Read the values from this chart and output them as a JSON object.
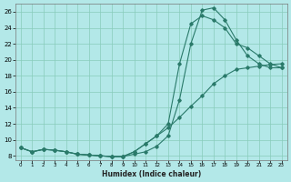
{
  "xlabel": "Humidex (Indice chaleur)",
  "background_color": "#b3e8e8",
  "grid_color": "#88ccbb",
  "line_color": "#2a7a6a",
  "xlim": [
    -0.5,
    23.5
  ],
  "ylim": [
    7.5,
    27
  ],
  "xticks": [
    0,
    1,
    2,
    3,
    4,
    5,
    6,
    7,
    8,
    9,
    10,
    11,
    12,
    13,
    14,
    15,
    16,
    17,
    18,
    19,
    20,
    21,
    22,
    23
  ],
  "yticks": [
    8,
    10,
    12,
    14,
    16,
    18,
    20,
    22,
    24,
    26
  ],
  "curve1_x": [
    0,
    1,
    2,
    3,
    4,
    5,
    6,
    7,
    8,
    9,
    10,
    11,
    12,
    13,
    14,
    15,
    16,
    17,
    18,
    19,
    20,
    21,
    22,
    23
  ],
  "curve1_y": [
    9.0,
    8.5,
    8.8,
    8.7,
    8.5,
    8.2,
    8.1,
    8.0,
    7.9,
    7.9,
    8.2,
    8.5,
    9.2,
    10.5,
    15.0,
    22.0,
    26.2,
    26.5,
    25.0,
    22.5,
    20.5,
    19.5,
    19.0,
    19.0
  ],
  "curve2_x": [
    0,
    1,
    2,
    3,
    4,
    5,
    6,
    7,
    8,
    9,
    10,
    11,
    12,
    13,
    14,
    15,
    16,
    17,
    18,
    19,
    20,
    21,
    22,
    23
  ],
  "curve2_y": [
    9.0,
    8.5,
    8.8,
    8.7,
    8.5,
    8.2,
    8.1,
    8.0,
    7.9,
    7.9,
    8.5,
    9.5,
    10.5,
    12.0,
    19.5,
    24.5,
    25.5,
    25.0,
    24.0,
    22.0,
    21.5,
    20.5,
    19.5,
    19.0
  ],
  "curve3_x": [
    0,
    1,
    2,
    3,
    4,
    5,
    6,
    7,
    8,
    9,
    10,
    11,
    12,
    13,
    14,
    15,
    16,
    17,
    18,
    19,
    20,
    21,
    22,
    23
  ],
  "curve3_y": [
    9.0,
    8.5,
    8.8,
    8.7,
    8.5,
    8.2,
    8.1,
    8.0,
    7.9,
    7.9,
    8.5,
    9.5,
    10.5,
    11.5,
    12.8,
    14.2,
    15.5,
    17.0,
    18.0,
    18.8,
    19.0,
    19.2,
    19.4,
    19.5
  ]
}
